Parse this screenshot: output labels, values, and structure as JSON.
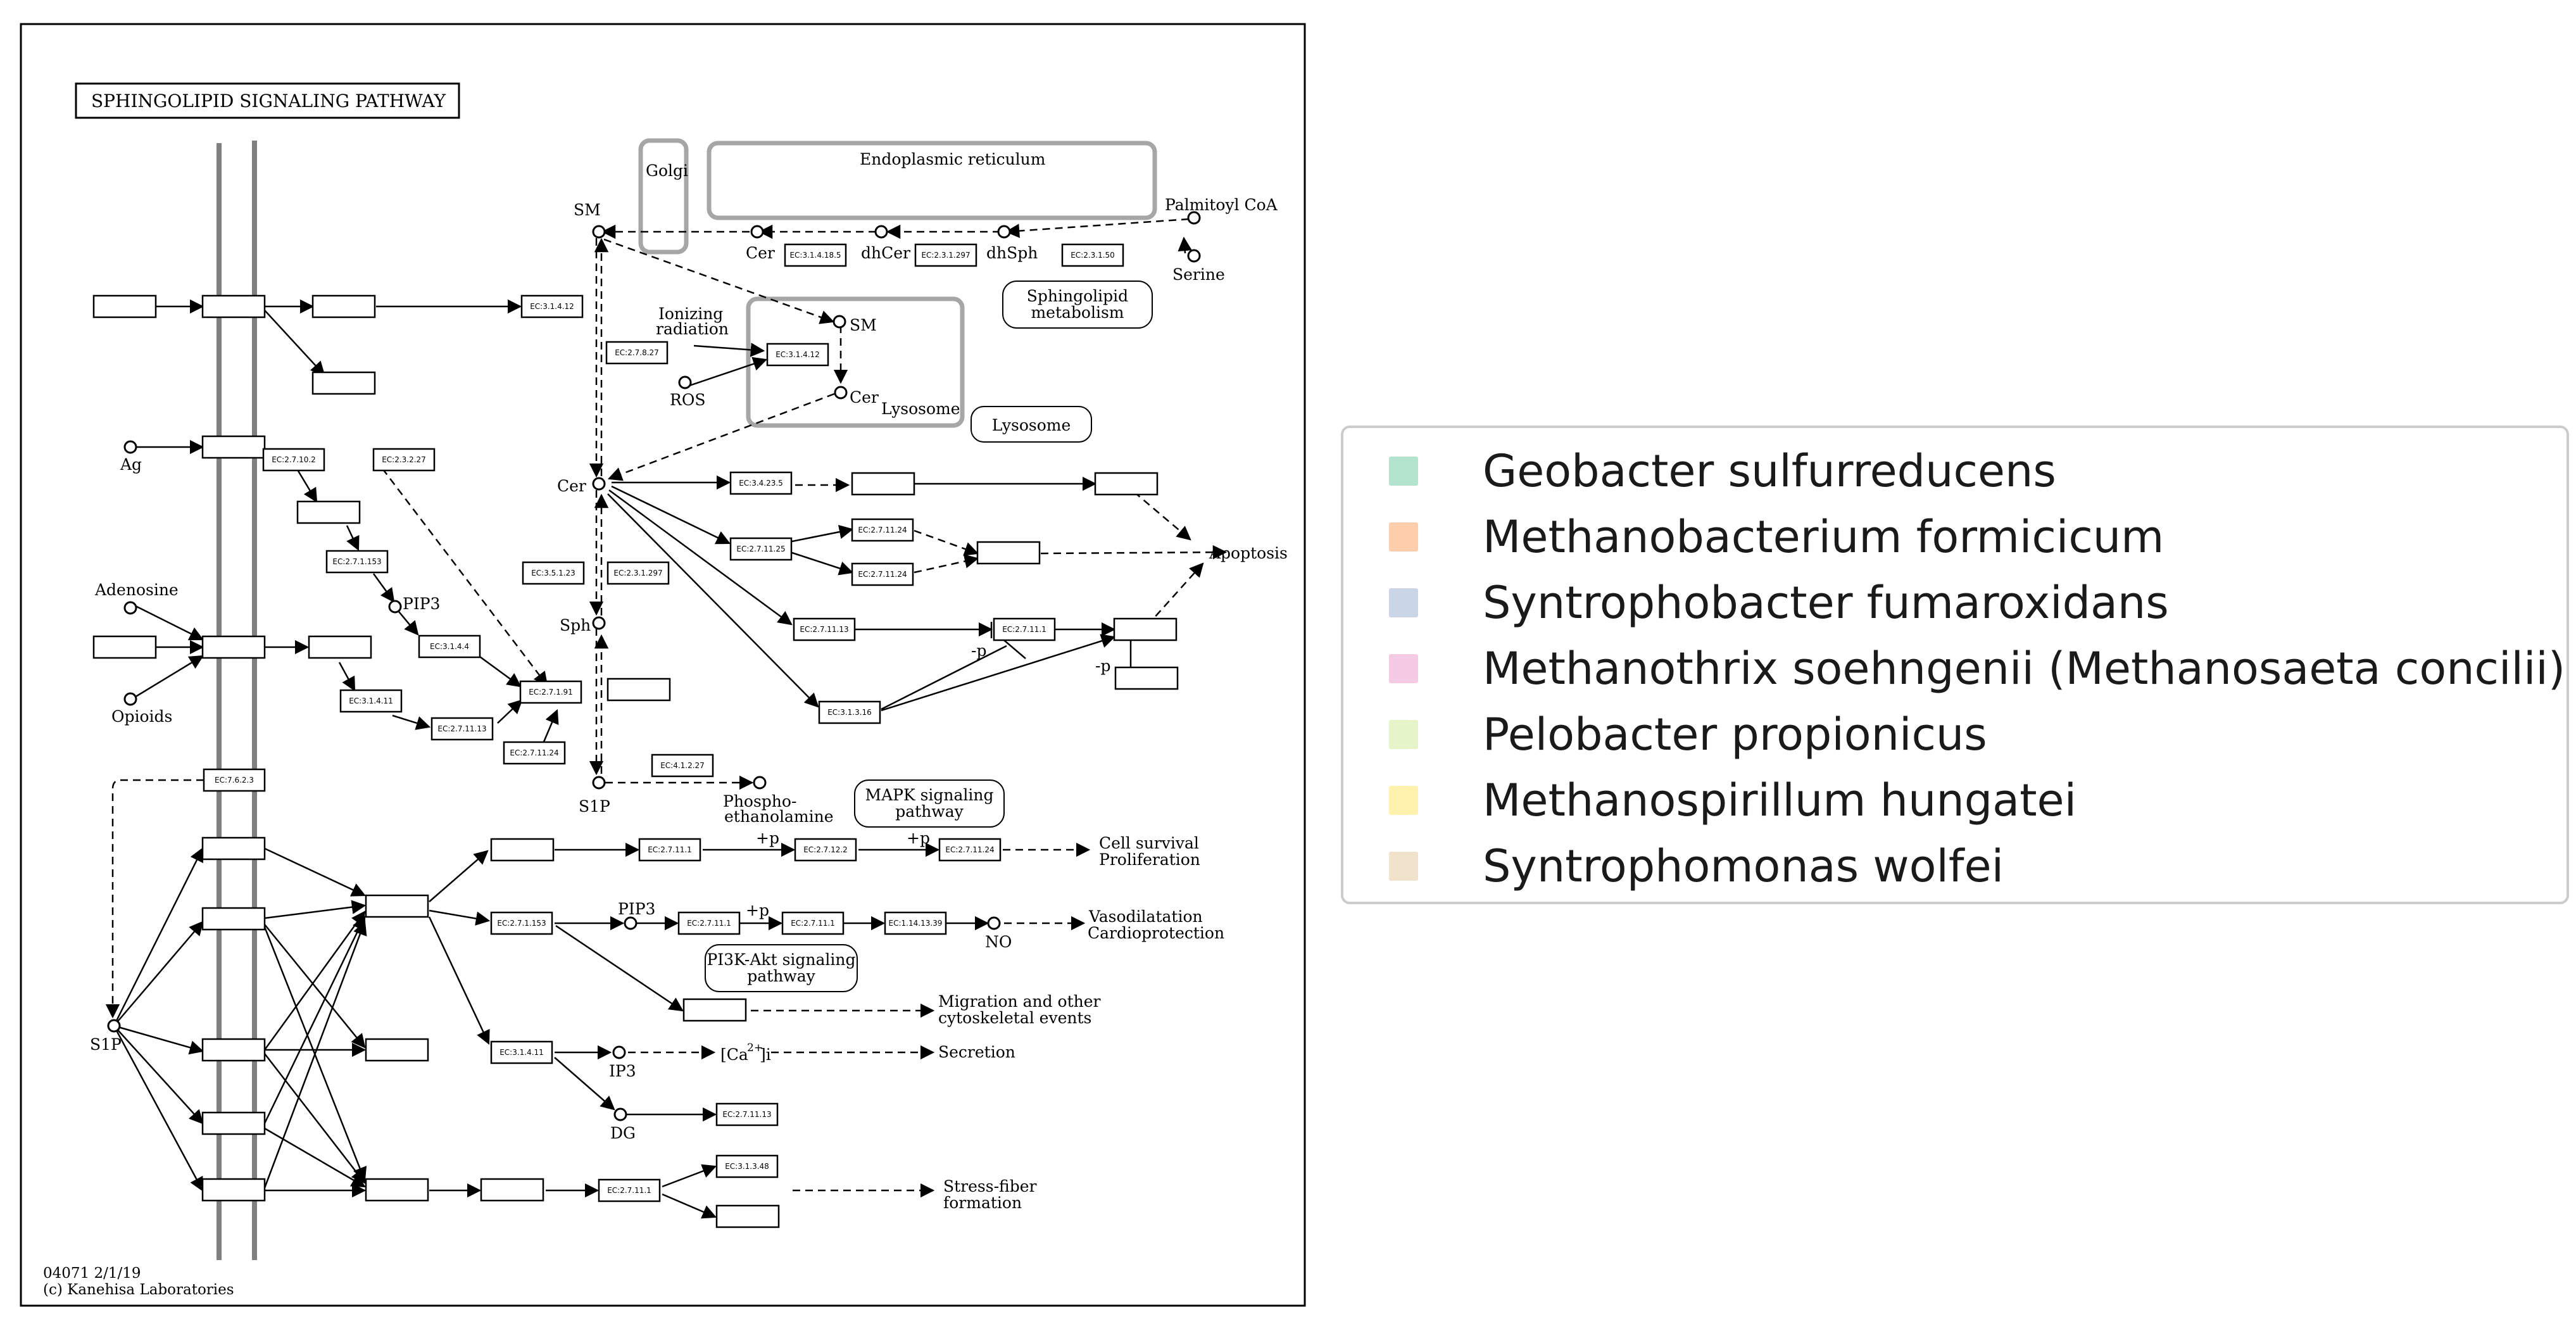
{
  "map": {
    "title": "SPHINGOLIPID SIGNALING PATHWAY",
    "footer_id": "04071 2/1/19",
    "footer_copyright": "(c) Kanehisa Laboratories",
    "compartments": {
      "golgi": "Golgi",
      "er": "Endoplasmic reticulum",
      "lysosome": "Lysosome",
      "lysosome_link": "Lysosome",
      "sphingolipid_metabolism": [
        "Sphingolipid",
        "metabolism"
      ],
      "mapk": [
        "MAPK signaling",
        "pathway"
      ],
      "pi3k": [
        "PI3K-Akt signaling",
        "pathway"
      ]
    },
    "compounds": {
      "sm": "SM",
      "sm_lys": "SM",
      "cer": "Cer",
      "cer_er": "Cer",
      "cer_lys": "Cer",
      "dhcer": "dhCer",
      "dhsph": "dhSph",
      "palmitoyl": "Palmitoyl CoA",
      "serine": "Serine",
      "sph": "Sph",
      "s1p": "S1P",
      "s1p_left": "S1P",
      "pip3": "PIP3",
      "pip3_b": "PIP3",
      "ag": "Ag",
      "adenosine": "Adenosine",
      "opioids": "Opioids",
      "ros": "ROS",
      "ionizing": [
        "Ionizing",
        "radiation"
      ],
      "phospho": [
        "Phospho-",
        "ethanolamine"
      ],
      "ip3": "IP3",
      "dg": "DG",
      "no": "NO",
      "ca": "[Ca",
      "ca_sup": "2+",
      "ca_sub": "]i",
      "p_plus_1": "+p",
      "p_plus_2": "+p",
      "p_plus_3": "+p",
      "p_minus_1": "-p",
      "p_minus_2": "-p"
    },
    "outcomes": {
      "apoptosis": "Apoptosis",
      "cell_survival": [
        "Cell survival",
        "Proliferation"
      ],
      "vasodilatation": [
        "Vasodilatation",
        "Cardioprotection"
      ],
      "migration": [
        "Migration and other",
        "cytoskeletal events"
      ],
      "secretion": "Secretion",
      "stress_fiber": [
        "Stress-fiber",
        "formation"
      ]
    },
    "enzymes": {
      "e1": "EC:3.1.4.12",
      "e2": "EC:3.1.4.12",
      "e3": "EC:2.7.8.27",
      "e4": "EC:3.1.4.18.5",
      "e5": "EC:2.3.1.297",
      "e6": "EC:2.3.1.50",
      "e7": "EC:2.7.10.2",
      "e8": "EC:2.3.2.27",
      "e9": "EC:2.7.1.153",
      "e10": "EC:3.1.4.4",
      "e11": "EC:3.1.4.11",
      "e12": "EC:2.7.11.13",
      "e13": "EC:2.7.1.91",
      "e14": "EC:2.7.11.24",
      "e15": "EC:3.5.1.23",
      "e16": "EC:2.3.1.297",
      "e17": "EC:3.4.23.5",
      "e18": "EC:2.7.11.25",
      "e19": "EC:2.7.11.24",
      "e20": "EC:2.7.11.24",
      "e21": "EC:2.7.11.13",
      "e22": "EC:2.7.11.1",
      "e23": "EC:3.1.3.16",
      "e24": "EC:4.1.2.27",
      "e25": "EC:7.6.2.3",
      "e26": "EC:2.7.11.1",
      "e27": "EC:2.7.12.2",
      "e28": "EC:2.7.11.24",
      "e29": "EC:2.7.1.153",
      "e30": "EC:2.7.11.1",
      "e31": "EC:2.7.11.1",
      "e32": "EC:1.14.13.39",
      "e33": "EC:3.1.4.11",
      "e34": "EC:2.7.11.13",
      "e35": "EC:2.7.11.1",
      "e36": "EC:3.1.3.48"
    }
  },
  "legend": {
    "items": [
      {
        "label": "Geobacter sulfurreducens",
        "color": "#b3e2cd"
      },
      {
        "label": "Methanobacterium formicicum",
        "color": "#fdcdac"
      },
      {
        "label": "Syntrophobacter fumaroxidans",
        "color": "#cbd5e8"
      },
      {
        "label": "Methanothrix soehngenii (Methanosaeta concilii)",
        "color": "#f4cae4"
      },
      {
        "label": "Pelobacter propionicus",
        "color": "#e6f5c9"
      },
      {
        "label": "Methanospirillum hungatei",
        "color": "#fff2ae"
      },
      {
        "label": "Syntrophomonas wolfei",
        "color": "#f1e2cc"
      }
    ]
  }
}
